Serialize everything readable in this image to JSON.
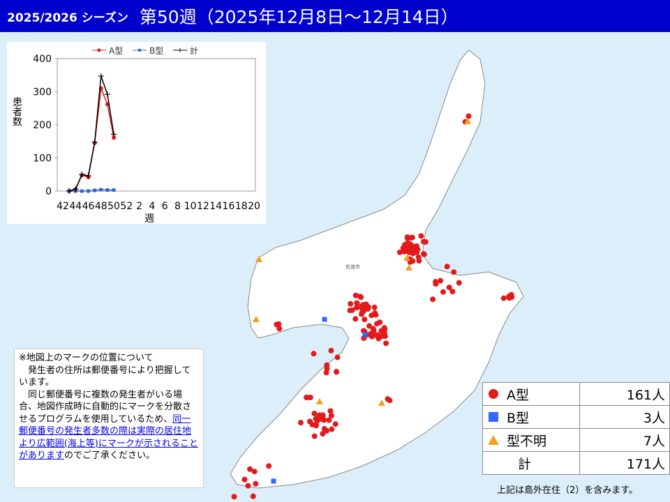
{
  "header": {
    "season": "2025/2026 シーズン",
    "week": "第50週（2025年12月8日～12月14日）"
  },
  "chart_data": {
    "type": "line",
    "categories": [
      42,
      null,
      44,
      null,
      46,
      null,
      48,
      null,
      50,
      null,
      52,
      null,
      2,
      null,
      4,
      null,
      6,
      null,
      8,
      null,
      10,
      null,
      12,
      null,
      14,
      null,
      16,
      null,
      18,
      null,
      20
    ],
    "series": [
      {
        "name": "A型",
        "color": "#e31a1c",
        "marker": "circle",
        "values": [
          null,
          0,
          5,
          48,
          42,
          145,
          310,
          262,
          161,
          null,
          null,
          null,
          null,
          null,
          null,
          null,
          null,
          null,
          null,
          null,
          null,
          null,
          null,
          null,
          null,
          null,
          null,
          null,
          null,
          null,
          null
        ]
      },
      {
        "name": "B型",
        "color": "#3366cc",
        "marker": "square",
        "values": [
          null,
          0,
          0,
          0,
          0,
          2,
          4,
          3,
          3,
          null,
          null,
          null,
          null,
          null,
          null,
          null,
          null,
          null,
          null,
          null,
          null,
          null,
          null,
          null,
          null,
          null,
          null,
          null,
          null,
          null,
          null
        ]
      },
      {
        "name": "計",
        "color": "#000000",
        "marker": "plus",
        "values": [
          null,
          0,
          6,
          50,
          46,
          148,
          347,
          292,
          171,
          null,
          null,
          null,
          null,
          null,
          null,
          null,
          null,
          null,
          null,
          null,
          null,
          null,
          null,
          null,
          null,
          null,
          null,
          null,
          null,
          null,
          null
        ]
      }
    ],
    "ylim": [
      0,
      400
    ],
    "yticks": [
      0,
      100,
      200,
      300,
      400
    ],
    "y_label": "患者数",
    "x_label": "週"
  },
  "map": {
    "city_label": "佐渡市"
  },
  "note": {
    "lines": [
      "※地図上のマークの位置について",
      "　発生者の住所は郵便番号により把握しています。",
      "　同じ郵便番号に複数の発生者がいる場合、地図作成時に自動的にマークを分散させるプログラムを使用しているため、"
    ],
    "link": "同一郵便番号の発生者多数の際は実際の居住地より広範囲(海上等)にマークが示されることがあります",
    "tail": "のでご了承ください。"
  },
  "legend_table": {
    "rows": [
      [
        "A型",
        "161人"
      ],
      [
        "B型",
        "3人"
      ],
      [
        "型不明",
        "7人"
      ],
      [
        "計",
        "171人"
      ]
    ],
    "footnote": "上記は島外在住（2）を含みます。"
  }
}
